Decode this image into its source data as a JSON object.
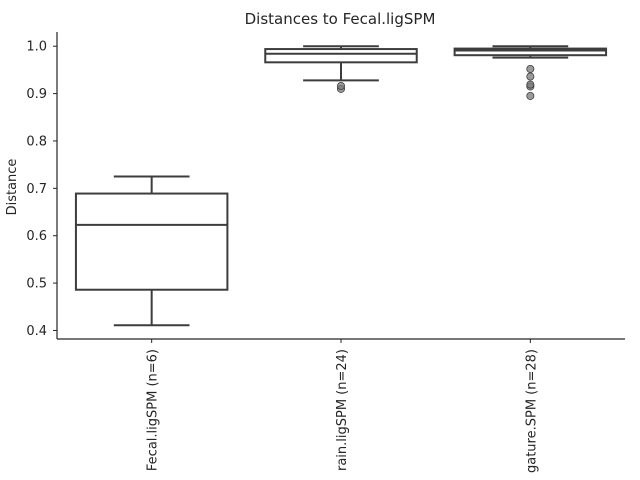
{
  "chart_data": {
    "type": "box",
    "title": "Distances to Fecal.ligSPM",
    "xlabel": "",
    "ylabel": "Distance",
    "ylim": [
      0.382,
      1.03
    ],
    "yticks": [
      0.4,
      0.5,
      0.6,
      0.7,
      0.8,
      0.9,
      1.0
    ],
    "ytick_labels": [
      "0.4",
      "0.5",
      "0.6",
      "0.7",
      "0.8",
      "0.9",
      "1.0"
    ],
    "grid": false,
    "categories": [
      "Fecal.ligSPM (n=6)",
      "rain.ligSPM (n=24)",
      "gature.SPM (n=28)"
    ],
    "boxes": [
      {
        "whisker_low": 0.411,
        "q1": 0.486,
        "median": 0.623,
        "q3": 0.689,
        "whisker_high": 0.725,
        "outliers": []
      },
      {
        "whisker_low": 0.928,
        "q1": 0.966,
        "median": 0.984,
        "q3": 0.994,
        "whisker_high": 1.0,
        "outliers": [
          0.91,
          0.916
        ]
      },
      {
        "whisker_low": 0.976,
        "q1": 0.981,
        "median": 0.991,
        "q3": 0.995,
        "whisker_high": 1.0,
        "outliers": [
          0.895,
          0.915,
          0.919,
          0.936,
          0.952
        ]
      }
    ],
    "colors": {
      "box_stroke": "#3d3d3d",
      "outlier_fill": "#7a7a7a",
      "axis": "#262626"
    }
  }
}
